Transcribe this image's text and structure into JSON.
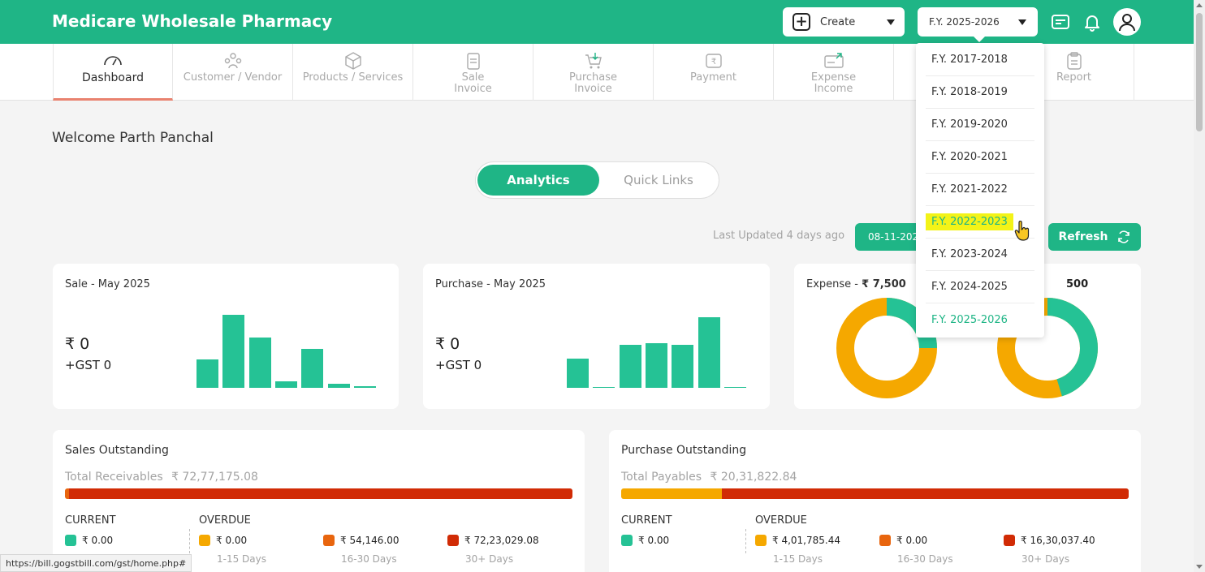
{
  "header": {
    "brand": "Medicare Wholesale Pharmacy",
    "create_label": "Create",
    "fy_selected": "F.Y. 2025-2026"
  },
  "nav": {
    "items": [
      {
        "label": "Dashboard",
        "icon": "speedometer-icon",
        "active": true
      },
      {
        "label": "Customer / Vendor",
        "icon": "people-icon"
      },
      {
        "label": "Products / Services",
        "icon": "box-icon"
      },
      {
        "label": "Sale\nInvoice",
        "icon": "sale-invoice-icon"
      },
      {
        "label": "Purchase\nInvoice",
        "icon": "cart-icon"
      },
      {
        "label": "Payment",
        "icon": "rupee-payment-icon"
      },
      {
        "label": "Expense\nIncome",
        "icon": "expense-icon"
      },
      {
        "label": "",
        "icon": ""
      },
      {
        "label": "Report",
        "icon": "clipboard-icon"
      }
    ]
  },
  "welcome": "Welcome Parth Panchal",
  "tabs": {
    "analytics": "Analytics",
    "quick_links": "Quick Links"
  },
  "last_updated": "Last Updated 4 days ago",
  "date_value": "08-11-202",
  "refresh_label": "Refresh",
  "sale_card": {
    "title": "Sale - May 2025",
    "amount": "₹ 0",
    "gst": "+GST 0",
    "bars": [
      0.35,
      0.9,
      0.62,
      0.08,
      0.48,
      0.05,
      0.02
    ]
  },
  "purchase_card": {
    "title": "Purchase - May 2025",
    "amount": "₹ 0",
    "gst": "+GST 0",
    "bars": [
      0.36,
      0.01,
      0.53,
      0.55,
      0.53,
      0.87,
      0.01
    ]
  },
  "expense_card": {
    "title_prefix": "Expense - ",
    "title_amount": "₹ 7,500",
    "second_amount": "500"
  },
  "sales_outstanding": {
    "title": "Sales Outstanding",
    "total_label": "Total Receivables",
    "total_value": "₹ 72,77,175.08",
    "current_label": "CURRENT",
    "overdue_label": "OVERDUE",
    "current": "₹ 0.00",
    "d1_15": "₹ 0.00",
    "d16_30": "₹ 54,146.00",
    "d30": "₹ 72,23,029.08",
    "days_1_15": "1-15 Days",
    "days_16_30": "16-30 Days",
    "days_30": "30+ Days"
  },
  "purchase_outstanding": {
    "title": "Purchase Outstanding",
    "total_label": "Total Payables",
    "total_value": "₹ 20,31,822.84",
    "current_label": "CURRENT",
    "overdue_label": "OVERDUE",
    "current": "₹ 0.00",
    "d1_15": "₹ 4,01,785.44",
    "d16_30": "₹ 0.00",
    "d30": "₹ 16,30,037.40",
    "days_1_15": "1-15 Days",
    "days_16_30": "16-30 Days",
    "days_30": "30+ Days"
  },
  "fy_dropdown": [
    "F.Y. 2017-2018",
    "F.Y. 2018-2019",
    "F.Y. 2019-2020",
    "F.Y. 2020-2021",
    "F.Y. 2021-2022",
    "F.Y. 2022-2023",
    "F.Y. 2023-2024",
    "F.Y. 2024-2025",
    "F.Y. 2025-2026"
  ],
  "status_url": "https://bill.gogstbill.com/gst/home.php#",
  "colors": {
    "brand": "#1fb586",
    "bar": "#25c295",
    "orange": "#f5a800",
    "dark_orange": "#e8650e",
    "red": "#d12b05"
  }
}
